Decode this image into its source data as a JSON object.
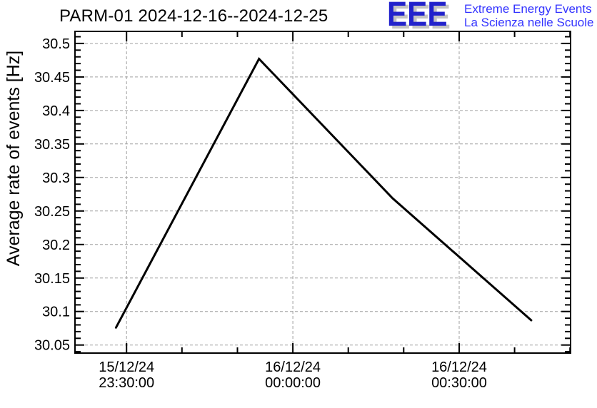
{
  "header": {
    "title": "PARM-01 2024-12-16--2024-12-25",
    "logo": {
      "acronym": "EEE",
      "line1": "Extreme Energy Events",
      "line2": "La Scienza nelle Scuole",
      "acronym_color": "#2222cc",
      "text_color": "#3333ff",
      "shadow_color": "#c3c3c3"
    }
  },
  "chart_data": {
    "type": "line",
    "title": "PARM-01 2024-12-16--2024-12-25",
    "xlabel": "",
    "ylabel": "Average rate of events [Hz]",
    "x_unit": "minutes since 15/12/24 23:00:00",
    "xlim": [
      20.7,
      110.1
    ],
    "ylim": [
      30.038,
      30.518
    ],
    "grid": "dashed at major ticks, both axes",
    "grid_color": "#a0a0a0",
    "legend": "none",
    "line_color": "#000000",
    "frame_color": "#000000",
    "x_ticks": [
      {
        "value": 30,
        "date": "15/12/24",
        "time": "23:30:00"
      },
      {
        "value": 60,
        "date": "16/12/24",
        "time": "00:00:00"
      },
      {
        "value": 90,
        "date": "16/12/24",
        "time": "00:30:00"
      }
    ],
    "x_minor_step_min": 10,
    "y_ticks": [
      {
        "value": 30.05,
        "label": "30.05"
      },
      {
        "value": 30.1,
        "label": "30.1"
      },
      {
        "value": 30.15,
        "label": "30.15"
      },
      {
        "value": 30.2,
        "label": "30.2"
      },
      {
        "value": 30.25,
        "label": "30.25"
      },
      {
        "value": 30.3,
        "label": "30.3"
      },
      {
        "value": 30.35,
        "label": "30.35"
      },
      {
        "value": 30.4,
        "label": "30.4"
      },
      {
        "value": 30.45,
        "label": "30.45"
      },
      {
        "value": 30.5,
        "label": "30.5"
      }
    ],
    "y_minor_step_hz": 0.01,
    "points": [
      {
        "x_min": 28.1,
        "time": "15/12/24 23:28:00",
        "rate_hz": 30.076
      },
      {
        "x_min": 53.9,
        "time": "15/12/24 23:54:00",
        "rate_hz": 30.477
      },
      {
        "x_min": 78.0,
        "time": "16/12/24 00:18:00",
        "rate_hz": 30.269
      },
      {
        "x_min": 103.0,
        "time": "16/12/24 00:43:00",
        "rate_hz": 30.087
      }
    ]
  }
}
